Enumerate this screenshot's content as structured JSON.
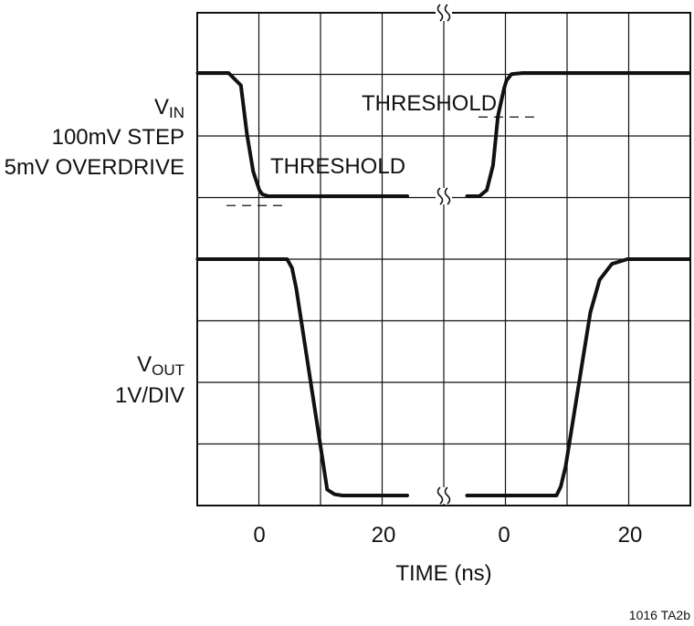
{
  "chart_data": {
    "type": "line",
    "title": "",
    "xlabel": "TIME (ns)",
    "x_tick_labels": [
      "0",
      "20",
      "0",
      "20"
    ],
    "grid": true,
    "axis_break": "time axis broken between the falling and rising transitions",
    "y_labels": {
      "vin_main": "V",
      "vin_sub": "IN",
      "vin_line2": "100mV STEP",
      "vin_line3": "5mV OVERDRIVE",
      "vout_main": "V",
      "vout_sub": "OUT",
      "vout_line2": "1V/DIV"
    },
    "annotations": [
      "THRESHOLD",
      "THRESHOLD"
    ],
    "series": [
      {
        "segments": [
          {
            "x": [
              -10,
              -5,
              -3,
              -2,
              -1,
              0,
              0.5,
              1.5,
              3,
              10,
              24
            ],
            "y": [
              2.0,
              2.0,
              1.8,
              1.0,
              0.4,
              0.1,
              0.03,
              0.0,
              0.0,
              0.0,
              0.0
            ]
          },
          {
            "x": [
              -6,
              -4,
              -2.8,
              -1.8,
              -1,
              0,
              0.4,
              1.2,
              3,
              10,
              30
            ],
            "y": [
              0.0,
              0.0,
              0.1,
              0.5,
              1.3,
              1.75,
              1.88,
              1.98,
              2.0,
              2.0,
              2.0
            ]
          }
        ]
      },
      {
        "segments": [
          {
            "x": [
              -10,
              4.5,
              5.3,
              6,
              11,
              12.2,
              13.5,
              24
            ],
            "y": [
              0,
              0,
              -0.15,
              -0.5,
              -3.9,
              -3.98,
              -4.0,
              -4.0
            ]
          },
          {
            "x": [
              -6,
              8.5,
              9.2,
              10,
              14,
              15.5,
              17.5,
              20,
              30
            ],
            "y": [
              -4.0,
              -4.0,
              -3.85,
              -3.5,
              -0.9,
              -0.35,
              -0.08,
              0.0,
              0.0
            ]
          }
        ]
      }
    ]
  },
  "figure_id": "1016 TA2b"
}
